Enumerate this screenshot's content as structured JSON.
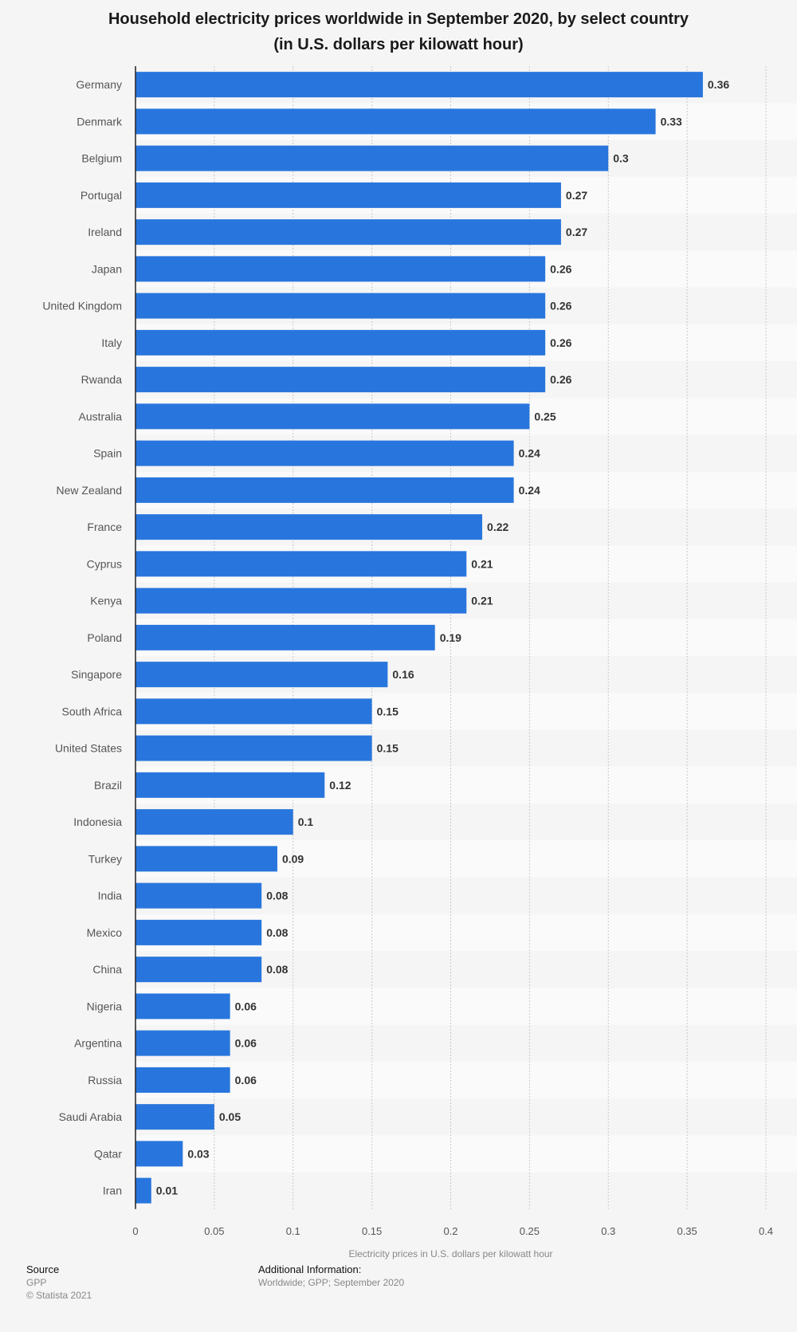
{
  "chart_data": {
    "type": "bar",
    "orientation": "horizontal",
    "title": "Household electricity prices worldwide in September 2020, by select country",
    "subtitle": "(in U.S. dollars per kilowatt hour)",
    "xlabel": "Electricity prices in U.S. dollars per kilowatt hour",
    "ylabel": "",
    "xlim": [
      0,
      0.4
    ],
    "ticks": [
      0,
      0.05,
      0.1,
      0.15,
      0.2,
      0.25,
      0.3,
      0.35,
      0.4
    ],
    "tick_labels": [
      "0",
      "0.05",
      "0.1",
      "0.15",
      "0.2",
      "0.25",
      "0.3",
      "0.35",
      "0.4"
    ],
    "categories": [
      "Germany",
      "Denmark",
      "Belgium",
      "Portugal",
      "Ireland",
      "Japan",
      "United Kingdom",
      "Italy",
      "Rwanda",
      "Australia",
      "Spain",
      "New Zealand",
      "France",
      "Cyprus",
      "Kenya",
      "Poland",
      "Singapore",
      "South Africa",
      "United States",
      "Brazil",
      "Indonesia",
      "Turkey",
      "India",
      "Mexico",
      "China",
      "Nigeria",
      "Argentina",
      "Russia",
      "Saudi Arabia",
      "Qatar",
      "Iran"
    ],
    "values": [
      0.36,
      0.33,
      0.3,
      0.27,
      0.27,
      0.26,
      0.26,
      0.26,
      0.26,
      0.25,
      0.24,
      0.24,
      0.22,
      0.21,
      0.21,
      0.19,
      0.16,
      0.15,
      0.15,
      0.12,
      0.1,
      0.09,
      0.08,
      0.08,
      0.08,
      0.06,
      0.06,
      0.06,
      0.05,
      0.03,
      0.01
    ],
    "value_labels": [
      "0.36",
      "0.33",
      "0.3",
      "0.27",
      "0.27",
      "0.26",
      "0.26",
      "0.26",
      "0.26",
      "0.25",
      "0.24",
      "0.24",
      "0.22",
      "0.21",
      "0.21",
      "0.19",
      "0.16",
      "0.15",
      "0.15",
      "0.12",
      "0.1",
      "0.09",
      "0.08",
      "0.08",
      "0.08",
      "0.06",
      "0.06",
      "0.06",
      "0.05",
      "0.03",
      "0.01"
    ],
    "bar_color": "#2876dd",
    "grid": true
  },
  "footer": {
    "source_heading": "Source",
    "source_name": "GPP",
    "copyright": "© Statista 2021",
    "info_heading": "Additional Information:",
    "info_text": "Worldwide; GPP; September 2020"
  },
  "colors": {
    "background": "#f5f5f5",
    "band": "#fafafa",
    "gridline": "#c8c8c8",
    "axis": "#222222",
    "label": "#555555",
    "value_label": "#333333"
  }
}
